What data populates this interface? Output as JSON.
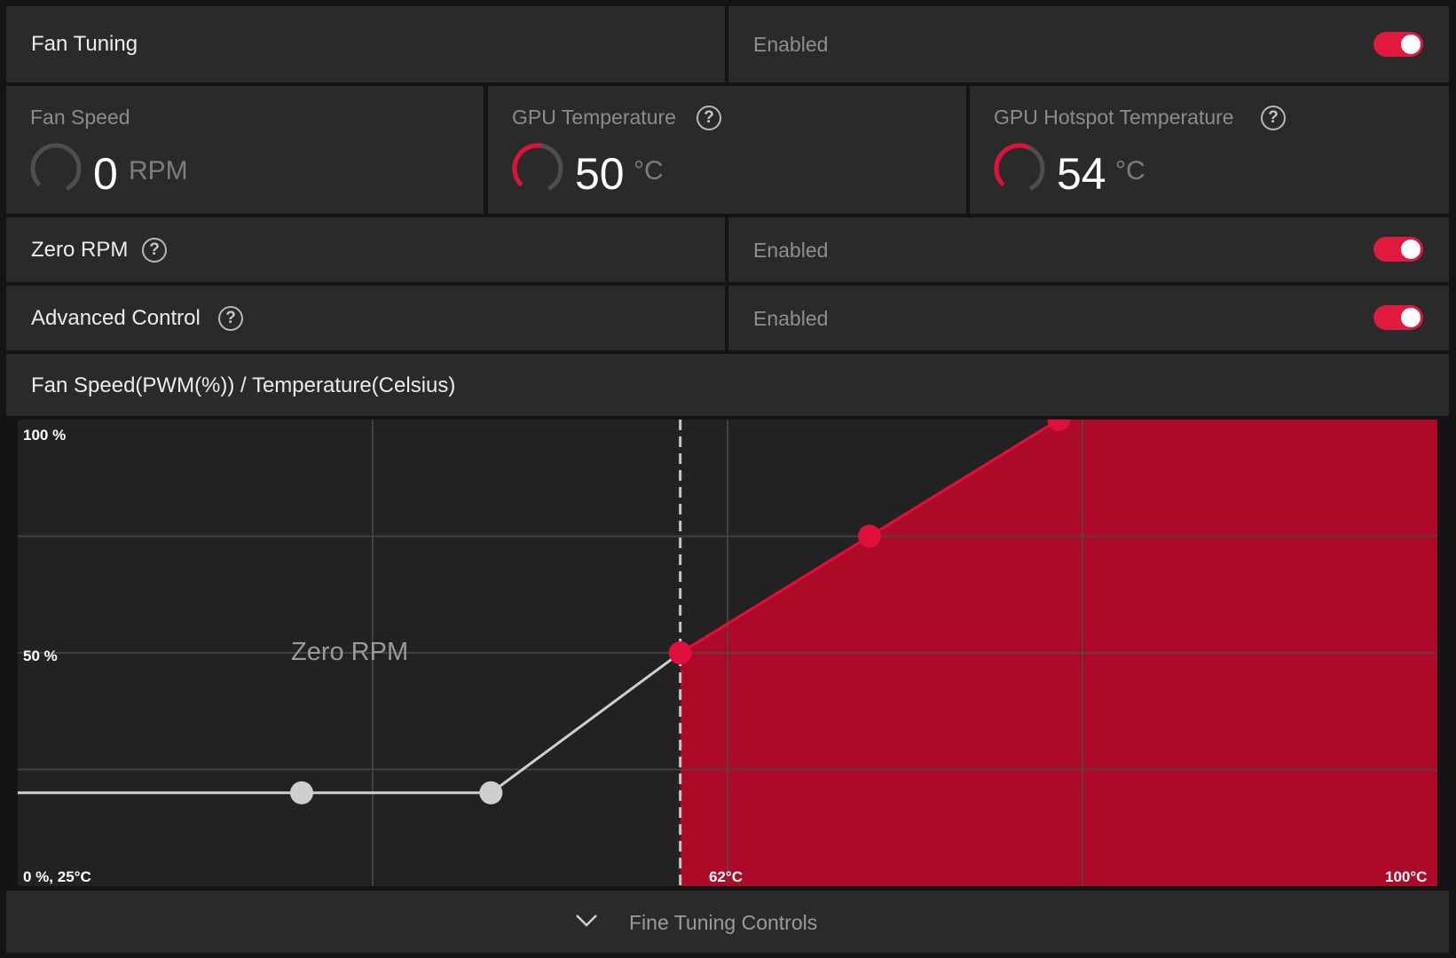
{
  "fan_tuning": {
    "label": "Fan Tuning",
    "value": "Enabled",
    "toggle_on": true
  },
  "metrics": {
    "fan_speed": {
      "label": "Fan Speed",
      "value": "0",
      "unit": "RPM"
    },
    "gpu_temp": {
      "label": "GPU Temperature",
      "value": "50",
      "unit": "°C"
    },
    "hotspot_temp": {
      "label": "GPU Hotspot Temperature",
      "value": "54",
      "unit": "°C"
    }
  },
  "zero_rpm": {
    "label": "Zero RPM",
    "value": "Enabled",
    "toggle_on": true
  },
  "advanced_control": {
    "label": "Advanced Control",
    "value": "Enabled",
    "toggle_on": true
  },
  "chart_title": "Fan Speed(PWM(%)) / Temperature(Celsius)",
  "chart_data": {
    "type": "line",
    "title": "Fan Speed(PWM(%)) / Temperature(Celsius)",
    "xlabel": "Temperature(Celsius)",
    "ylabel": "Fan Speed(PWM(%))",
    "xlim": [
      25,
      100
    ],
    "ylim": [
      0,
      100
    ],
    "grid": true,
    "tick_labels": {
      "y_top": "100 %",
      "y_mid": "50 %",
      "origin": "0 %, 25°C",
      "x_mid": "62°C",
      "x_max": "100°C"
    },
    "points": [
      {
        "x": 40,
        "y": 20,
        "active": false
      },
      {
        "x": 50,
        "y": 20,
        "active": false
      },
      {
        "x": 60,
        "y": 50,
        "active": true
      },
      {
        "x": 70,
        "y": 75,
        "active": true
      },
      {
        "x": 80,
        "y": 100,
        "active": true
      }
    ],
    "zero_rpm_threshold": 60,
    "zero_rpm_label": "Zero RPM",
    "colors": {
      "active": "#e0103a",
      "fill": "#ad0a2a",
      "inactive": "#cfcfcf",
      "grid": "#4a4a4a"
    }
  },
  "footer": {
    "label": "Fine Tuning Controls"
  }
}
